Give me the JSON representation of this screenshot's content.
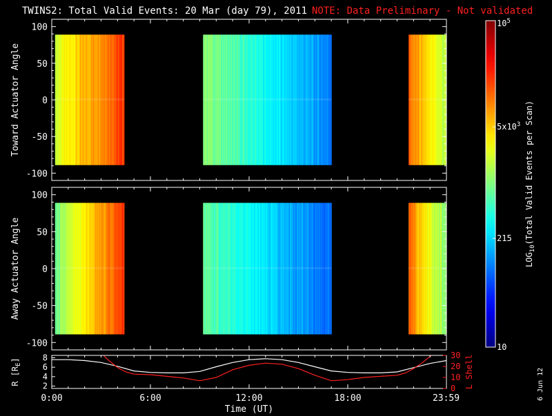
{
  "title": "TWINS2: Total Valid Events: 20 Mar (day  79), 2011",
  "note": "NOTE: Data Preliminary - Not validated",
  "footer_date": "6 Jun 12",
  "colors": {
    "note": "#ff2020",
    "lshell": "#ff2020",
    "r_line": "#ffffff",
    "axis": "#ffffff",
    "background": "#000000"
  },
  "colorbar": {
    "title": "LOG10(Total Valid Events per Scan)",
    "title_parts": {
      "pre": "LOG",
      "sub": "10",
      "post": "(Total Valid Events per Scan)"
    },
    "labels": [
      {
        "text": "10",
        "value": 10
      },
      {
        "text": "215",
        "value": 215
      },
      {
        "text": "5x10",
        "sup": "3",
        "value": 5000
      },
      {
        "text": "10",
        "sup": "5",
        "value": 100000
      }
    ],
    "range": [
      10,
      100000
    ],
    "scale": "log"
  },
  "chart_data": [
    {
      "type": "heatmap",
      "panel": "toward",
      "ylabel": "Toward Actuator Angle",
      "ylim": [
        -110,
        110
      ],
      "yticks": [
        "100",
        "50",
        "0",
        "-50",
        "-100"
      ],
      "ytick_values": [
        100,
        50,
        0,
        -50,
        -100
      ],
      "xlim": [
        0,
        24
      ],
      "angle_range": [
        -89,
        89
      ],
      "data_blocks": [
        {
          "start_hour": 0.2,
          "end_hour": 4.4,
          "log_start": 3.3,
          "log_end": 4.3
        },
        {
          "start_hour": 9.2,
          "end_hour": 17.0,
          "log_start": 3.1,
          "log_end": 2.0
        },
        {
          "start_hour": 21.7,
          "end_hour": 24.0,
          "log_start": 4.1,
          "log_end": 3.2
        }
      ]
    },
    {
      "type": "heatmap",
      "panel": "away",
      "ylabel": "Away Actuator Angle",
      "ylim": [
        -110,
        110
      ],
      "yticks": [
        "100",
        "50",
        "0",
        "-50",
        "-100"
      ],
      "ytick_values": [
        100,
        50,
        0,
        -50,
        -100
      ],
      "xlim": [
        0,
        24
      ],
      "angle_range": [
        -89,
        89
      ],
      "data_blocks": [
        {
          "start_hour": 0.2,
          "end_hour": 4.4,
          "log_start": 2.9,
          "log_end": 4.3
        },
        {
          "start_hour": 9.2,
          "end_hour": 17.0,
          "log_start": 2.9,
          "log_end": 1.9
        },
        {
          "start_hour": 21.7,
          "end_hour": 24.0,
          "log_start": 4.1,
          "log_end": 3.0
        }
      ]
    },
    {
      "type": "line",
      "panel": "ephemeris",
      "ylabel": "R [RE]",
      "ylabel_parts": {
        "pre": "R [R",
        "sub": "E",
        "post": "]"
      },
      "ylim": [
        1.5,
        8.5
      ],
      "yticks": [
        "8",
        "6",
        "4",
        "2"
      ],
      "ytick_values": [
        8,
        6,
        4,
        2
      ],
      "y2label": "L Shell",
      "y2lim": [
        0,
        30
      ],
      "y2ticks": [
        "30",
        "20",
        "10",
        "0"
      ],
      "y2tick_values": [
        30,
        20,
        10,
        0
      ],
      "xlabel": "Time (UT)",
      "xticks": [
        "0:00",
        "6:00",
        "12:00",
        "18:00",
        "23:59"
      ],
      "xtick_values": [
        0,
        6,
        12,
        18,
        23.98
      ],
      "series": [
        {
          "name": "R",
          "axis": "left",
          "x": [
            0,
            1,
            2,
            3,
            4,
            5,
            6,
            7,
            8,
            9,
            10,
            11,
            12,
            13,
            14,
            15,
            16,
            17,
            18,
            19,
            20,
            21,
            22,
            23,
            24
          ],
          "y": [
            7.6,
            7.6,
            7.4,
            7.0,
            6.2,
            5.2,
            4.9,
            4.8,
            4.8,
            5.1,
            6.1,
            7.0,
            7.6,
            7.8,
            7.6,
            7.0,
            6.1,
            5.2,
            4.9,
            4.8,
            4.8,
            5.0,
            5.9,
            6.8,
            7.4
          ]
        },
        {
          "name": "L Shell",
          "axis": "right",
          "x": [
            3.0,
            3.5,
            4.0,
            4.5,
            5.0,
            6.0,
            7.0,
            8.0,
            9.0,
            10.0,
            11.0,
            12.0,
            13.0,
            14.0,
            15.0,
            16.0,
            17.0,
            18.0,
            19.0,
            20.0,
            21.0,
            21.5,
            22.0,
            22.5,
            23.0,
            23.3
          ],
          "y": [
            32,
            25,
            19,
            15,
            13,
            12.5,
            11,
            9.5,
            7,
            10,
            17,
            21,
            23,
            22,
            18,
            12,
            7,
            8,
            10,
            11,
            12,
            14,
            18,
            23,
            29,
            33
          ]
        }
      ]
    }
  ]
}
